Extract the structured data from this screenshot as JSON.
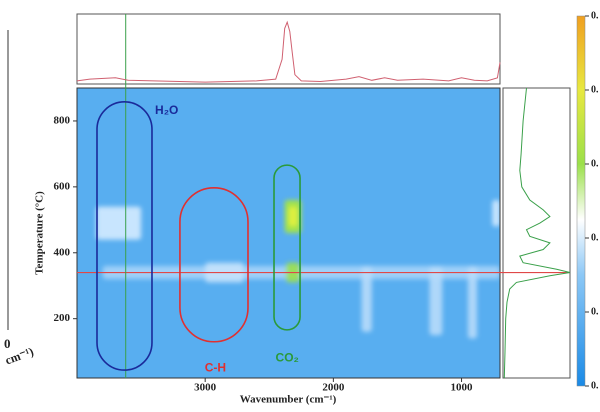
{
  "chart_data": {
    "type": "heatmap",
    "x_label": "Wavenumber (cm⁻¹)",
    "y_label": "Temperature (°C)",
    "xlim": [
      4000,
      700
    ],
    "xticks": [
      3000,
      2000,
      1000
    ],
    "ylim": [
      20,
      900
    ],
    "yticks": [
      200,
      400,
      600,
      800
    ],
    "background_color": "#58aef0",
    "spots": [
      {
        "x": [
          3800,
          700
        ],
        "y": [
          320,
          360
        ],
        "color": "#a6d4fa"
      },
      {
        "x": [
          3850,
          3500
        ],
        "y": [
          440,
          540
        ],
        "color": "#d4ebff"
      },
      {
        "x": [
          3000,
          2700
        ],
        "y": [
          310,
          370
        ],
        "color": "#c4e2fc"
      },
      {
        "x": [
          1780,
          1700
        ],
        "y": [
          160,
          360
        ],
        "color": "#b8dcfb"
      },
      {
        "x": [
          1250,
          1150
        ],
        "y": [
          150,
          360
        ],
        "color": "#b8dcfb"
      },
      {
        "x": [
          950,
          880
        ],
        "y": [
          140,
          360
        ],
        "color": "#b8dcfb"
      },
      {
        "x": [
          760,
          700
        ],
        "y": [
          480,
          560
        ],
        "color": "#d4ebff"
      },
      {
        "x": [
          2380,
          2250
        ],
        "y": [
          460,
          560
        ],
        "color": "#a8e83a"
      },
      {
        "x": [
          2350,
          2280
        ],
        "y": [
          480,
          540
        ],
        "color": "#e4f23e"
      },
      {
        "x": [
          2370,
          2260
        ],
        "y": [
          310,
          370
        ],
        "color": "#9be04a"
      }
    ],
    "hline": {
      "value": 340,
      "color": "#e04848"
    },
    "vline": {
      "value": 3620,
      "color": "#3aa04a"
    },
    "regions": [
      {
        "label": "H₂O",
        "color": "#1a2a9a",
        "x": [
          3844,
          3415
        ],
        "y": [
          44,
          858
        ],
        "label_at": [
          3300,
          830
        ]
      },
      {
        "label": "C-H",
        "color": "#e03030",
        "x": [
          3197,
          2666
        ],
        "y": [
          130,
          597
        ],
        "label_at": [
          2920,
          50
        ]
      },
      {
        "label": "CO₂",
        "color": "#2a9a3a",
        "x": [
          2463,
          2260
        ],
        "y": [
          166,
          666
        ],
        "label_at": [
          2360,
          80
        ]
      }
    ],
    "top_spectrum": {
      "color": "#d06070",
      "ylim": [
        0,
        1.1
      ],
      "x": [
        4000,
        3900,
        3700,
        3600,
        3400,
        3200,
        3000,
        2800,
        2600,
        2450,
        2400,
        2380,
        2360,
        2340,
        2320,
        2300,
        2250,
        2100,
        1900,
        1800,
        1700,
        1600,
        1500,
        1300,
        1100,
        1000,
        900,
        800,
        720,
        700
      ],
      "values": [
        0.05,
        0.08,
        0.1,
        0.06,
        0.05,
        0.04,
        0.03,
        0.04,
        0.05,
        0.08,
        0.4,
        0.9,
        1.0,
        0.85,
        0.5,
        0.15,
        0.05,
        0.04,
        0.08,
        0.12,
        0.06,
        0.1,
        0.06,
        0.08,
        0.05,
        0.1,
        0.06,
        0.05,
        0.1,
        0.35
      ]
    },
    "side_profile": {
      "color": "#3aa04a",
      "xlim": [
        0,
        1
      ],
      "y": [
        900,
        800,
        700,
        650,
        600,
        560,
        530,
        510,
        490,
        470,
        450,
        430,
        410,
        390,
        370,
        350,
        340,
        330,
        310,
        290,
        250,
        200,
        100,
        20
      ],
      "values": [
        0.35,
        0.3,
        0.27,
        0.25,
        0.28,
        0.4,
        0.6,
        0.7,
        0.55,
        0.35,
        0.4,
        0.7,
        0.6,
        0.25,
        0.3,
        0.8,
        1.0,
        0.7,
        0.2,
        0.1,
        0.06,
        0.04,
        0.03,
        0.02
      ]
    },
    "colorbar_labels": [
      "0.",
      "0.",
      "0.",
      "0.",
      "0.",
      "0."
    ],
    "fragments": [
      "0",
      "cm⁻¹)"
    ]
  }
}
